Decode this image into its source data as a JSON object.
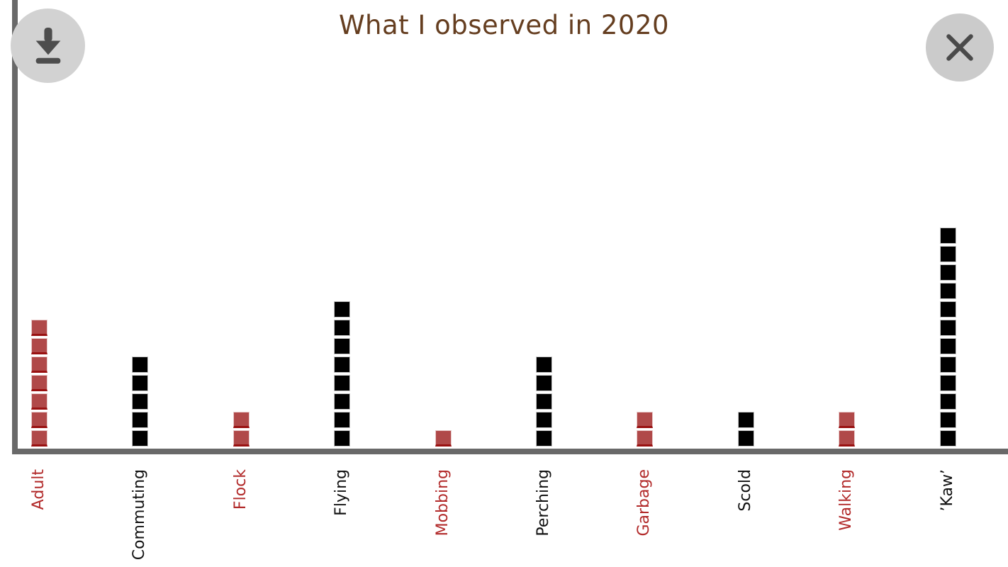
{
  "header": {
    "title": "What I observed in 2020",
    "title_color": "#653e20"
  },
  "toolbar": {
    "download_button": "download-chart",
    "close_button": "close-chart"
  },
  "axes": {
    "color": "#696969"
  },
  "chart_data": {
    "type": "bar",
    "subtype": "waffle-pictograph-unit-squares",
    "title": "What I observed in 2020",
    "xlabel": "",
    "ylabel": "",
    "categories": [
      "Adult",
      "Commuting",
      "Flock",
      "Flying",
      "Mobbing",
      "Perching",
      "Garbage",
      "Scold",
      "Walking",
      "’Kaw’"
    ],
    "values": [
      7,
      5,
      2,
      8,
      1,
      5,
      2,
      2,
      2,
      12
    ],
    "square_colors": [
      "red",
      "black",
      "red",
      "black",
      "red",
      "black",
      "red",
      "black",
      "red",
      "black"
    ],
    "palette": {
      "red": "#b04949",
      "black": "#000000"
    },
    "label_palette": {
      "red": "#b22a2a",
      "black": "#111111"
    },
    "ylim": [
      0,
      12
    ],
    "grid": false,
    "legend": false
  }
}
